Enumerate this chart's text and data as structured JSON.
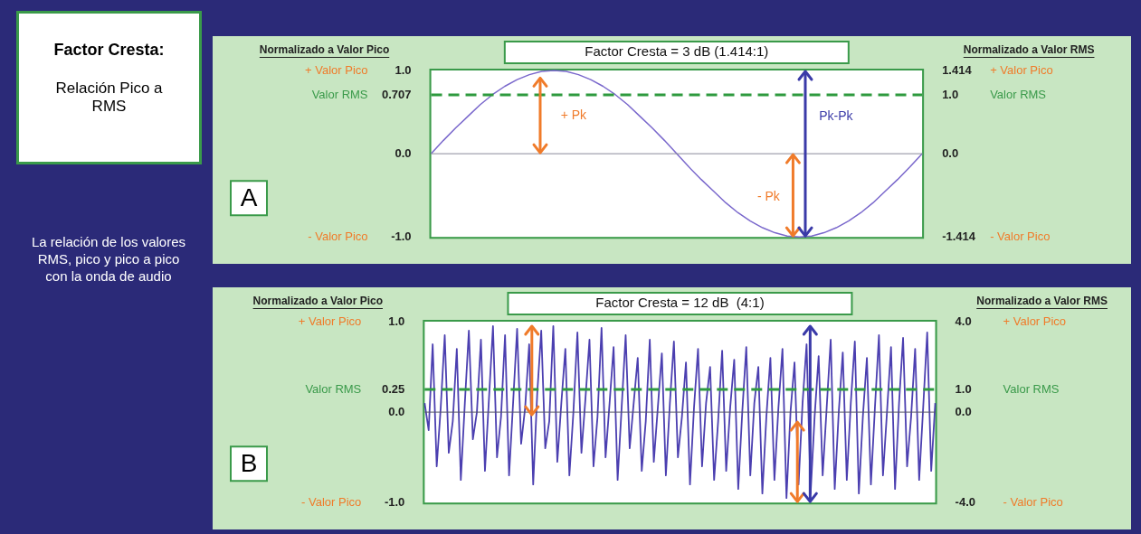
{
  "chart_data": [
    {
      "type": "other",
      "title": "Factor Cresta:",
      "subtitle": "Relación Pico a RMS",
      "annotations": [
        "La relación de los valores RMS, pico y pico a pico con la onda de audio"
      ]
    },
    {
      "type": "line",
      "title": "Factor Cresta = 3 dB (1.414:1)",
      "subtitle": "A",
      "ylabel": "Normalizado a Valor Pico",
      "y2label": "Normalizado a Valor RMS",
      "categories": [
        null,
        null,
        null,
        null,
        null,
        null,
        null,
        null,
        null,
        null,
        null,
        null,
        null,
        null,
        null,
        null,
        null,
        null,
        null,
        null,
        null,
        null,
        null,
        null,
        null,
        null,
        null,
        null,
        null,
        null,
        null,
        null,
        null,
        null,
        null,
        null,
        null,
        null,
        null,
        null,
        null
      ],
      "series": [
        {
          "color": "#7a68cc",
          "values": [
            0,
            0.16,
            0.31,
            0.45,
            0.59,
            0.71,
            0.81,
            0.89,
            0.95,
            0.99,
            1,
            0.99,
            0.95,
            0.89,
            0.81,
            0.71,
            0.59,
            0.45,
            0.31,
            0.16,
            0,
            -0.16,
            -0.31,
            -0.45,
            -0.59,
            -0.71,
            -0.81,
            -0.89,
            -0.95,
            -0.99,
            -1,
            -0.99,
            -0.95,
            -0.89,
            -0.81,
            -0.71,
            -0.59,
            -0.45,
            -0.31,
            -0.16,
            0
          ]
        }
      ],
      "ylim": [
        -1,
        1
      ],
      "yticks": [
        {
          "value": 1,
          "label": "1.0"
        },
        0.707,
        {
          "value": 0,
          "label": "0.0"
        },
        {
          "value": -1,
          "label": "-1.0"
        }
      ],
      "y2lim": [
        -1.414,
        1.414
      ],
      "y2ticks": [
        1.414,
        {
          "value": 1,
          "label": "1.0"
        },
        {
          "value": 0,
          "label": "0.0"
        },
        -1.414
      ],
      "ref_lines": [
        {
          "axis": "y",
          "value": 0.707,
          "color": "#2e9a3e",
          "line_style": "dashed"
        },
        {
          "axis": "y",
          "value": 0,
          "color": "#8a8a9a",
          "line_style": "solid"
        }
      ],
      "annotations": [
        "+ Pk",
        "- Pk",
        "Pk-Pk",
        "+ Valor Pico",
        "Valor RMS",
        "- Valor Pico",
        "+ Valor Pico",
        "Valor RMS",
        "- Valor Pico"
      ],
      "legend": false,
      "grid": false,
      "marker": "none",
      "line_style": "solid"
    },
    {
      "type": "line",
      "title": "Factor Cresta = 12 dB  (4:1)",
      "subtitle": "B",
      "ylabel": "Normalizado a Valor Pico",
      "y2label": "Normalizado a Valor RMS",
      "categories": [
        null,
        null,
        null,
        null,
        null,
        null,
        null,
        null,
        null,
        null,
        null,
        null,
        null,
        null,
        null,
        null,
        null,
        null,
        null,
        null,
        null,
        null,
        null,
        null,
        null,
        null,
        null,
        null,
        null,
        null,
        null,
        null,
        null,
        null,
        null,
        null,
        null,
        null,
        null,
        null,
        null,
        null,
        null,
        null,
        null,
        null,
        null,
        null,
        null,
        null,
        null,
        null,
        null,
        null,
        null,
        null,
        null,
        null,
        null,
        null,
        null,
        null,
        null,
        null,
        null,
        null,
        null,
        null,
        null,
        null,
        null,
        null,
        null,
        null,
        null,
        null,
        null,
        null,
        null,
        null,
        null,
        null,
        null,
        null,
        null,
        null,
        null,
        null,
        null,
        null,
        null,
        null,
        null,
        null,
        null,
        null,
        null,
        null,
        null,
        null,
        null,
        null,
        null,
        null,
        null,
        null,
        null,
        null,
        null,
        null,
        null,
        null,
        null,
        null,
        null,
        null,
        null,
        null,
        null,
        null,
        null,
        null,
        null,
        null,
        null,
        null,
        null,
        null
      ],
      "series": [
        {
          "color": "#4b3fb0",
          "values": [
            0.1,
            -0.2,
            0.75,
            -0.6,
            0.05,
            0.85,
            -0.45,
            -0.1,
            0.7,
            -0.75,
            0.1,
            0.9,
            -0.3,
            0.0,
            0.8,
            -0.65,
            0.15,
            0.95,
            -0.5,
            -0.05,
            0.85,
            -0.7,
            0.1,
            0.92,
            -0.35,
            0.05,
            0.75,
            -0.8,
            0.2,
            0.9,
            -0.4,
            -0.1,
            0.95,
            -0.55,
            0.1,
            0.7,
            -0.7,
            0.0,
            0.88,
            -0.45,
            0.15,
            0.8,
            -0.6,
            -0.05,
            0.93,
            -0.5,
            0.1,
            0.72,
            -0.75,
            0.05,
            0.85,
            -0.4,
            0.1,
            0.6,
            -0.65,
            -0.1,
            0.8,
            -0.55,
            0.05,
            0.65,
            -0.7,
            0.1,
            0.78,
            -0.5,
            -0.05,
            0.55,
            -0.8,
            0.05,
            0.7,
            -0.6,
            0.1,
            0.5,
            -0.75,
            -0.1,
            0.68,
            -0.65,
            0.05,
            0.58,
            -0.85,
            0.0,
            0.72,
            -0.7,
            0.1,
            0.5,
            -0.9,
            -0.05,
            0.6,
            -0.75,
            0.05,
            0.7,
            -0.95,
            0.0,
            0.55,
            -0.8,
            0.1,
            0.75,
            -0.9,
            -0.05,
            0.62,
            -0.7,
            0.05,
            0.8,
            -0.85,
            0.0,
            0.66,
            -0.75,
            0.1,
            0.78,
            -0.9,
            -0.05,
            0.6,
            -0.8,
            0.05,
            0.85,
            -0.7,
            0.0,
            0.72,
            -0.85,
            0.1,
            0.82,
            -0.6,
            -0.05,
            0.7,
            -0.75,
            0.05,
            0.88,
            -0.65,
            0.1
          ]
        }
      ],
      "ylim": [
        -1,
        1
      ],
      "yticks": [
        {
          "value": 1,
          "label": "1.0"
        },
        0.25,
        {
          "value": 0,
          "label": "0.0"
        },
        {
          "value": -1,
          "label": "-1.0"
        }
      ],
      "y2lim": [
        -4,
        4
      ],
      "y2ticks": [
        {
          "value": 4,
          "label": "4.0"
        },
        {
          "value": 1,
          "label": "1.0"
        },
        {
          "value": 0,
          "label": "0.0"
        },
        {
          "value": -4,
          "label": "-4.0"
        }
      ],
      "ref_lines": [
        {
          "axis": "y",
          "value": 0.25,
          "color": "#2e9a3e",
          "line_style": "dashed"
        },
        {
          "axis": "y",
          "value": 0,
          "color": "#555566",
          "line_style": "solid"
        }
      ],
      "annotations": [
        "+ Valor Pico",
        "Valor RMS",
        "- Valor Pico",
        "+ Valor Pico",
        "Valor RMS",
        "- Valor Pico"
      ],
      "legend": false,
      "grid": false,
      "marker": "none",
      "line_style": "solid"
    }
  ]
}
